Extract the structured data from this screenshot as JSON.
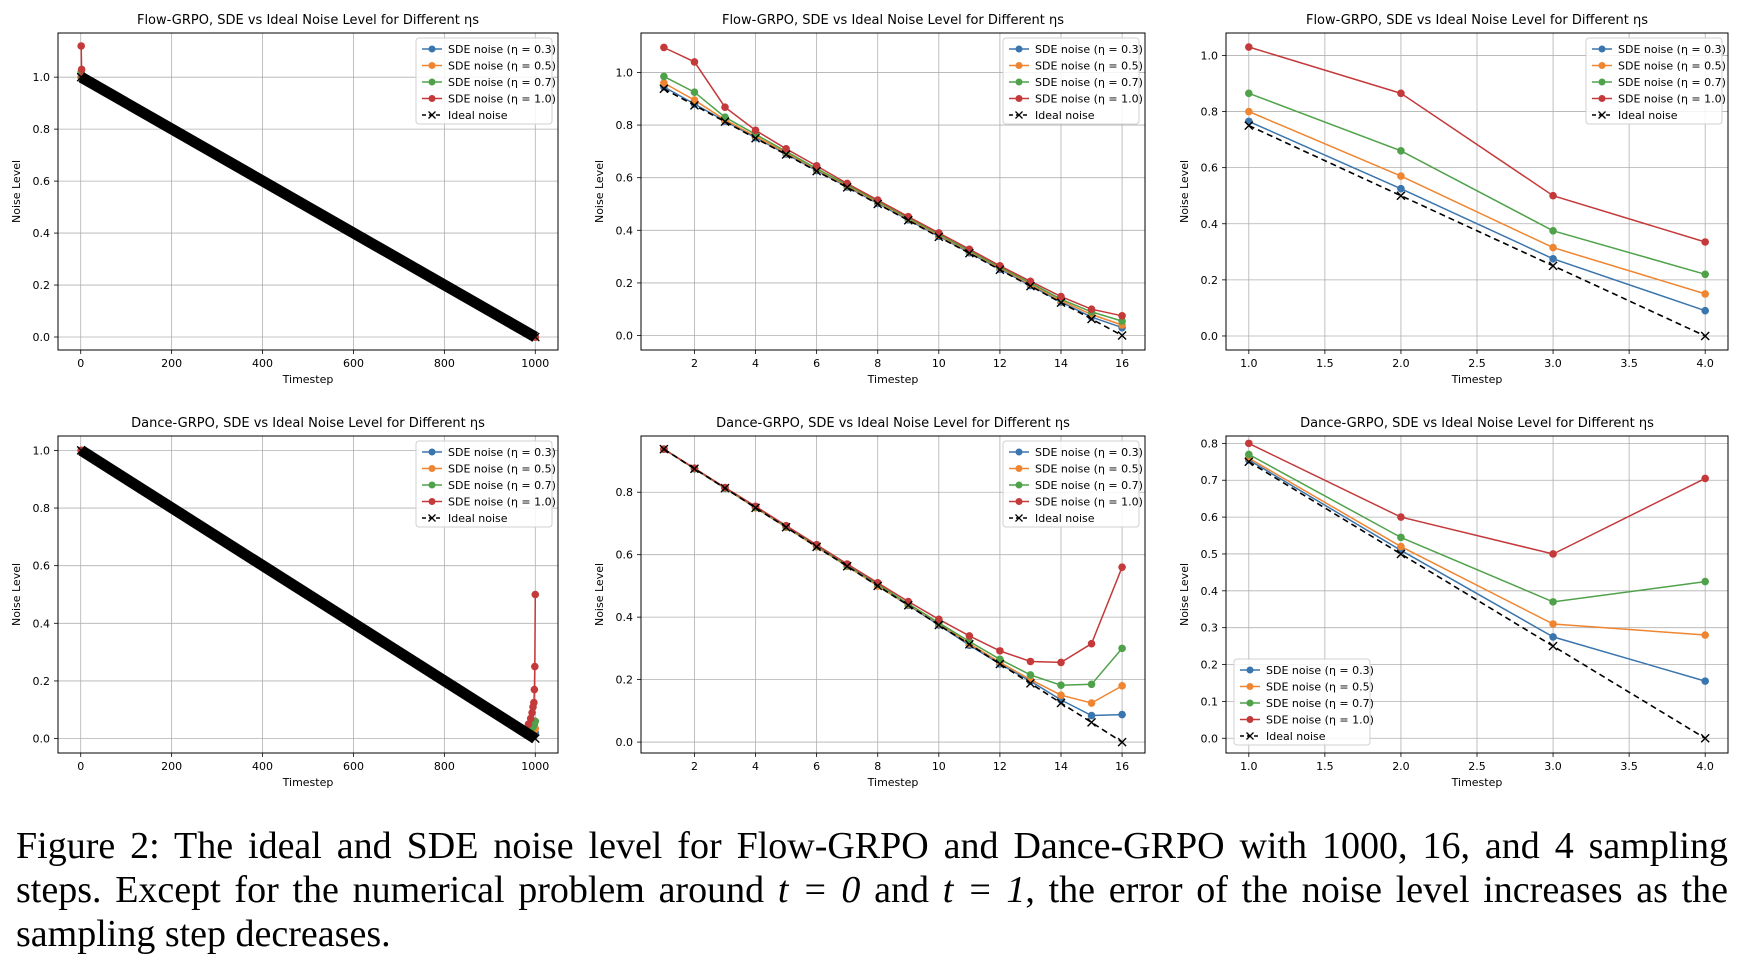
{
  "colors": {
    "eta_0_3": "#3a75ad",
    "eta_0_5": "#ef8530",
    "eta_0_7": "#4fa24a",
    "eta_1_0": "#c4393a",
    "ideal": "#000000"
  },
  "legend_labels": {
    "eta_0_3": "SDE noise (η = 0.3)",
    "eta_0_5": "SDE noise (η = 0.5)",
    "eta_0_7": "SDE noise (η = 0.7)",
    "eta_1_0": "SDE noise (η = 1.0)",
    "ideal": "Ideal noise"
  },
  "caption": {
    "label": "Figure 2:",
    "part1": "The ideal and SDE noise level for Flow-GRPO and Dance-GRPO with 1000, 16, and 4 sampling steps. Except for the numerical problem around",
    "t0": "t = 0",
    "and": "and",
    "t1": "t = 1",
    "part2": ", the error of the noise level increases as the sampling step decreases."
  },
  "chart_data": [
    {
      "type": "line",
      "title": "Flow-GRPO, SDE vs Ideal Noise Level for Different ηs",
      "xlabel": "Timestep",
      "ylabel": "Noise Level",
      "xlim": [
        -50,
        1050
      ],
      "ylim": [
        -0.05,
        1.17
      ],
      "xticks": [
        0,
        200,
        400,
        600,
        800,
        1000
      ],
      "yticks": [
        0.0,
        0.2,
        0.4,
        0.6,
        0.8,
        1.0
      ],
      "xtick_decimals": 0,
      "ytick_decimals": 1,
      "grid": true,
      "legend_position": "top-right",
      "dense": true,
      "series": [
        {
          "key": "eta_0_3",
          "x": [
            1,
            2,
            3,
            1000
          ],
          "y": [
            1.0,
            0.999,
            0.998,
            0.0
          ]
        },
        {
          "key": "eta_0_5",
          "x": [
            1,
            2,
            3,
            1000
          ],
          "y": [
            1.01,
            1.0,
            0.998,
            0.0
          ]
        },
        {
          "key": "eta_0_7",
          "x": [
            1,
            2,
            3,
            1000
          ],
          "y": [
            1.02,
            1.0,
            0.998,
            0.0
          ]
        },
        {
          "key": "eta_1_0",
          "x": [
            1,
            2,
            3,
            1000
          ],
          "y": [
            1.12,
            1.03,
            1.0,
            0.0
          ]
        },
        {
          "key": "ideal",
          "x": [
            1,
            1000
          ],
          "y": [
            1.0,
            0.0
          ]
        }
      ]
    },
    {
      "type": "line",
      "title": "Flow-GRPO, SDE vs Ideal Noise Level for Different ηs",
      "xlabel": "Timestep",
      "ylabel": "Noise Level",
      "xlim": [
        0.25,
        16.75
      ],
      "ylim": [
        -0.055,
        1.15
      ],
      "xticks": [
        2,
        4,
        6,
        8,
        10,
        12,
        14,
        16
      ],
      "yticks": [
        0.0,
        0.2,
        0.4,
        0.6,
        0.8,
        1.0
      ],
      "xtick_decimals": 0,
      "ytick_decimals": 1,
      "grid": true,
      "legend_position": "top-right",
      "series": [
        {
          "key": "eta_0_3",
          "x": [
            1,
            2,
            3,
            4,
            5,
            6,
            7,
            8,
            9,
            10,
            11,
            12,
            13,
            14,
            15,
            16
          ],
          "y": [
            0.945,
            0.88,
            0.815,
            0.752,
            0.69,
            0.627,
            0.565,
            0.502,
            0.44,
            0.377,
            0.315,
            0.252,
            0.19,
            0.127,
            0.07,
            0.03
          ]
        },
        {
          "key": "eta_0_5",
          "x": [
            1,
            2,
            3,
            4,
            5,
            6,
            7,
            8,
            9,
            10,
            11,
            12,
            13,
            14,
            15,
            16
          ],
          "y": [
            0.96,
            0.895,
            0.82,
            0.757,
            0.695,
            0.632,
            0.569,
            0.506,
            0.444,
            0.381,
            0.319,
            0.257,
            0.195,
            0.133,
            0.08,
            0.04
          ]
        },
        {
          "key": "eta_0_7",
          "x": [
            1,
            2,
            3,
            4,
            5,
            6,
            7,
            8,
            9,
            10,
            11,
            12,
            13,
            14,
            15,
            16
          ],
          "y": [
            0.985,
            0.925,
            0.83,
            0.765,
            0.7,
            0.635,
            0.573,
            0.51,
            0.447,
            0.385,
            0.322,
            0.26,
            0.2,
            0.138,
            0.09,
            0.055
          ]
        },
        {
          "key": "eta_1_0",
          "x": [
            1,
            2,
            3,
            4,
            5,
            6,
            7,
            8,
            9,
            10,
            11,
            12,
            13,
            14,
            15,
            16
          ],
          "y": [
            1.095,
            1.04,
            0.868,
            0.78,
            0.71,
            0.645,
            0.578,
            0.515,
            0.452,
            0.39,
            0.328,
            0.265,
            0.206,
            0.148,
            0.1,
            0.075
          ]
        },
        {
          "key": "ideal",
          "x": [
            1,
            2,
            3,
            4,
            5,
            6,
            7,
            8,
            9,
            10,
            11,
            12,
            13,
            14,
            15,
            16
          ],
          "y": [
            0.938,
            0.875,
            0.813,
            0.75,
            0.688,
            0.625,
            0.563,
            0.5,
            0.438,
            0.375,
            0.313,
            0.25,
            0.188,
            0.125,
            0.063,
            0.0
          ]
        }
      ]
    },
    {
      "type": "line",
      "title": "Flow-GRPO, SDE vs Ideal Noise Level for Different ηs",
      "xlabel": "Timestep",
      "ylabel": "Noise Level",
      "xlim": [
        0.85,
        4.15
      ],
      "ylim": [
        -0.05,
        1.08
      ],
      "xticks": [
        1.0,
        1.5,
        2.0,
        2.5,
        3.0,
        3.5,
        4.0
      ],
      "yticks": [
        0.0,
        0.2,
        0.4,
        0.6,
        0.8,
        1.0
      ],
      "xtick_decimals": 1,
      "ytick_decimals": 1,
      "grid": true,
      "legend_position": "top-right",
      "series": [
        {
          "key": "eta_0_3",
          "x": [
            1,
            2,
            3,
            4
          ],
          "y": [
            0.765,
            0.525,
            0.275,
            0.09
          ]
        },
        {
          "key": "eta_0_5",
          "x": [
            1,
            2,
            3,
            4
          ],
          "y": [
            0.8,
            0.57,
            0.315,
            0.15
          ]
        },
        {
          "key": "eta_0_7",
          "x": [
            1,
            2,
            3,
            4
          ],
          "y": [
            0.865,
            0.66,
            0.375,
            0.22
          ]
        },
        {
          "key": "eta_1_0",
          "x": [
            1,
            2,
            3,
            4
          ],
          "y": [
            1.03,
            0.865,
            0.5,
            0.335
          ]
        },
        {
          "key": "ideal",
          "x": [
            1,
            2,
            3,
            4
          ],
          "y": [
            0.75,
            0.5,
            0.25,
            0.0
          ]
        }
      ]
    },
    {
      "type": "line",
      "title": "Dance-GRPO, SDE vs Ideal Noise Level for Different ηs",
      "xlabel": "Timestep",
      "ylabel": "Noise Level",
      "xlim": [
        -50,
        1050
      ],
      "ylim": [
        -0.05,
        1.05
      ],
      "xticks": [
        0,
        200,
        400,
        600,
        800,
        1000
      ],
      "yticks": [
        0.0,
        0.2,
        0.4,
        0.6,
        0.8,
        1.0
      ],
      "xtick_decimals": 0,
      "ytick_decimals": 1,
      "grid": true,
      "legend_position": "top-right",
      "dense": true,
      "series": [
        {
          "key": "eta_0_3",
          "x": [
            1,
            980,
            990,
            995,
            998,
            1000
          ],
          "y": [
            1.0,
            0.02,
            0.015,
            0.012,
            0.015,
            0.02
          ]
        },
        {
          "key": "eta_0_5",
          "x": [
            1,
            980,
            990,
            995,
            998,
            1000
          ],
          "y": [
            1.0,
            0.02,
            0.02,
            0.025,
            0.03,
            0.035
          ]
        },
        {
          "key": "eta_0_7",
          "x": [
            1,
            980,
            990,
            995,
            998,
            1000
          ],
          "y": [
            1.0,
            0.025,
            0.03,
            0.04,
            0.05,
            0.06
          ]
        },
        {
          "key": "eta_1_0",
          "x": [
            1,
            980,
            985,
            990,
            993,
            995,
            997,
            998,
            999,
            1000
          ],
          "y": [
            1.0,
            0.03,
            0.05,
            0.07,
            0.09,
            0.11,
            0.125,
            0.17,
            0.25,
            0.5
          ]
        },
        {
          "key": "ideal",
          "x": [
            1,
            1000
          ],
          "y": [
            1.0,
            0.0
          ]
        }
      ]
    },
    {
      "type": "line",
      "title": "Dance-GRPO, SDE vs Ideal Noise Level for Different ηs",
      "xlabel": "Timestep",
      "ylabel": "Noise Level",
      "xlim": [
        0.25,
        16.75
      ],
      "ylim": [
        -0.035,
        0.98
      ],
      "xticks": [
        2,
        4,
        6,
        8,
        10,
        12,
        14,
        16
      ],
      "yticks": [
        0.0,
        0.2,
        0.4,
        0.6,
        0.8
      ],
      "xtick_decimals": 0,
      "ytick_decimals": 1,
      "grid": true,
      "legend_position": "top-right",
      "series": [
        {
          "key": "eta_0_3",
          "x": [
            1,
            2,
            3,
            4,
            5,
            6,
            7,
            8,
            9,
            10,
            11,
            12,
            13,
            14,
            15,
            16
          ],
          "y": [
            0.938,
            0.875,
            0.813,
            0.75,
            0.688,
            0.625,
            0.563,
            0.5,
            0.438,
            0.375,
            0.31,
            0.25,
            0.195,
            0.135,
            0.085,
            0.088
          ]
        },
        {
          "key": "eta_0_5",
          "x": [
            1,
            2,
            3,
            4,
            5,
            6,
            7,
            8,
            9,
            10,
            11,
            12,
            13,
            14,
            15,
            16
          ],
          "y": [
            0.938,
            0.875,
            0.813,
            0.75,
            0.688,
            0.625,
            0.563,
            0.5,
            0.44,
            0.38,
            0.315,
            0.255,
            0.2,
            0.15,
            0.125,
            0.18
          ]
        },
        {
          "key": "eta_0_7",
          "x": [
            1,
            2,
            3,
            4,
            5,
            6,
            7,
            8,
            9,
            10,
            11,
            12,
            13,
            14,
            15,
            16
          ],
          "y": [
            0.938,
            0.875,
            0.813,
            0.752,
            0.69,
            0.628,
            0.565,
            0.505,
            0.443,
            0.382,
            0.322,
            0.265,
            0.215,
            0.182,
            0.185,
            0.3
          ]
        },
        {
          "key": "eta_1_0",
          "x": [
            1,
            2,
            3,
            4,
            5,
            6,
            7,
            8,
            9,
            10,
            11,
            12,
            13,
            14,
            15,
            16
          ],
          "y": [
            0.938,
            0.877,
            0.815,
            0.755,
            0.693,
            0.632,
            0.57,
            0.51,
            0.45,
            0.393,
            0.34,
            0.292,
            0.258,
            0.255,
            0.315,
            0.56
          ]
        },
        {
          "key": "ideal",
          "x": [
            1,
            2,
            3,
            4,
            5,
            6,
            7,
            8,
            9,
            10,
            11,
            12,
            13,
            14,
            15,
            16
          ],
          "y": [
            0.938,
            0.875,
            0.813,
            0.75,
            0.688,
            0.625,
            0.563,
            0.5,
            0.438,
            0.375,
            0.313,
            0.25,
            0.188,
            0.125,
            0.063,
            0.0
          ]
        }
      ]
    },
    {
      "type": "line",
      "title": "Dance-GRPO, SDE vs Ideal Noise Level for Different ηs",
      "xlabel": "Timestep",
      "ylabel": "Noise Level",
      "xlim": [
        0.85,
        4.15
      ],
      "ylim": [
        -0.04,
        0.82
      ],
      "xticks": [
        1.0,
        1.5,
        2.0,
        2.5,
        3.0,
        3.5,
        4.0
      ],
      "yticks": [
        0.0,
        0.1,
        0.2,
        0.3,
        0.4,
        0.5,
        0.6,
        0.7,
        0.8
      ],
      "xtick_decimals": 1,
      "ytick_decimals": 1,
      "grid": true,
      "legend_position": "bottom-left",
      "series": [
        {
          "key": "eta_0_3",
          "x": [
            1,
            2,
            3,
            4
          ],
          "y": [
            0.755,
            0.51,
            0.275,
            0.155
          ]
        },
        {
          "key": "eta_0_5",
          "x": [
            1,
            2,
            3,
            4
          ],
          "y": [
            0.76,
            0.52,
            0.31,
            0.28
          ]
        },
        {
          "key": "eta_0_7",
          "x": [
            1,
            2,
            3,
            4
          ],
          "y": [
            0.77,
            0.545,
            0.37,
            0.425
          ]
        },
        {
          "key": "eta_1_0",
          "x": [
            1,
            2,
            3,
            4
          ],
          "y": [
            0.8,
            0.6,
            0.5,
            0.705
          ]
        },
        {
          "key": "ideal",
          "x": [
            1,
            2,
            3,
            4
          ],
          "y": [
            0.75,
            0.5,
            0.25,
            0.0
          ]
        }
      ]
    }
  ]
}
